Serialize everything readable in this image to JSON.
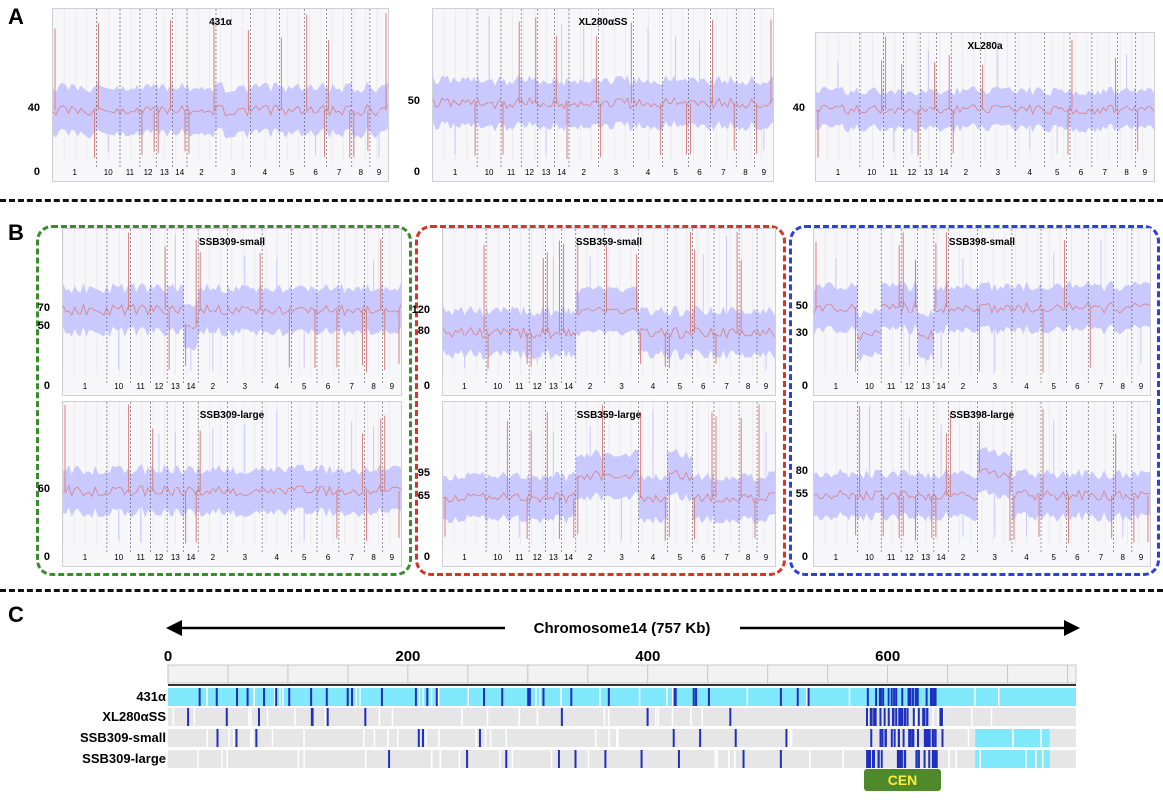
{
  "panels": {
    "A": "A",
    "B": "B",
    "C": "C"
  },
  "chromosome_order": [
    "1",
    "10",
    "11",
    "12",
    "13",
    "14",
    "2",
    "3",
    "4",
    "5",
    "6",
    "7",
    "8",
    "9"
  ],
  "chart_data": [
    {
      "type": "line",
      "title": "431α",
      "yticks": [
        0,
        40
      ],
      "series": [
        {
          "values": [
            40,
            40,
            40,
            40,
            40,
            40,
            40,
            40,
            40,
            40,
            40,
            40,
            40,
            40
          ]
        }
      ]
    },
    {
      "type": "line",
      "title": "XL280αSS",
      "yticks": [
        0,
        50
      ],
      "series": [
        {
          "values": [
            50,
            50,
            50,
            50,
            50,
            50,
            50,
            50,
            50,
            50,
            50,
            50,
            50,
            50
          ]
        }
      ]
    },
    {
      "type": "line",
      "title": "XL280a",
      "yticks": [
        40
      ],
      "series": [
        {
          "values": [
            40,
            40,
            40,
            40,
            40,
            40,
            40,
            40,
            40,
            40,
            40,
            40,
            40,
            40
          ]
        }
      ]
    },
    {
      "type": "line",
      "title": "SSB309-small",
      "yticks": [
        0,
        50,
        70
      ],
      "series": [
        {
          "values": [
            70,
            70,
            70,
            70,
            70,
            55,
            70,
            70,
            70,
            70,
            70,
            70,
            70,
            70
          ]
        }
      ]
    },
    {
      "type": "line",
      "title": "SSB309-large",
      "yticks": [
        0,
        60
      ],
      "series": [
        {
          "values": [
            60,
            60,
            60,
            60,
            60,
            60,
            60,
            60,
            60,
            60,
            60,
            60,
            60,
            60
          ]
        }
      ]
    },
    {
      "type": "line",
      "title": "SSB359-small",
      "yticks": [
        0,
        80,
        120
      ],
      "series": [
        {
          "values": [
            80,
            80,
            80,
            80,
            80,
            80,
            120,
            120,
            80,
            80,
            80,
            80,
            80,
            80
          ]
        }
      ]
    },
    {
      "type": "line",
      "title": "SSB359-large",
      "yticks": [
        0,
        65,
        95
      ],
      "series": [
        {
          "values": [
            65,
            65,
            65,
            65,
            65,
            65,
            95,
            95,
            65,
            95,
            65,
            65,
            65,
            65
          ]
        }
      ]
    },
    {
      "type": "line",
      "title": "SSB398-small",
      "yticks": [
        0,
        30,
        50
      ],
      "series": [
        {
          "values": [
            50,
            30,
            50,
            50,
            30,
            50,
            50,
            50,
            50,
            50,
            50,
            50,
            50,
            50
          ]
        }
      ]
    },
    {
      "type": "line",
      "title": "SSB398-large",
      "yticks": [
        0,
        55,
        80
      ],
      "series": [
        {
          "values": [
            55,
            55,
            55,
            55,
            55,
            55,
            55,
            80,
            55,
            55,
            55,
            55,
            55,
            55
          ]
        }
      ]
    },
    {
      "type": "heatmap",
      "title": "Chromosome14 (757 Kb)",
      "xticks": [
        0,
        200,
        400,
        600
      ],
      "xlim": [
        0,
        757
      ],
      "tracks": [
        "431α",
        "XL280αSS",
        "SSB309-small",
        "SSB309-large"
      ],
      "annotation": "CEN",
      "cen_range_kb": [
        580,
        645
      ]
    }
  ],
  "colors": {
    "band": "#c9c9ff",
    "mean_line": "#d98080",
    "green": "#3c8a2e",
    "red": "#d6332a",
    "blue": "#2e3fe0",
    "cyan": "#7fe8fb",
    "dark_blue": "#1f2fbf",
    "grey_track": "#e6e6e6"
  }
}
